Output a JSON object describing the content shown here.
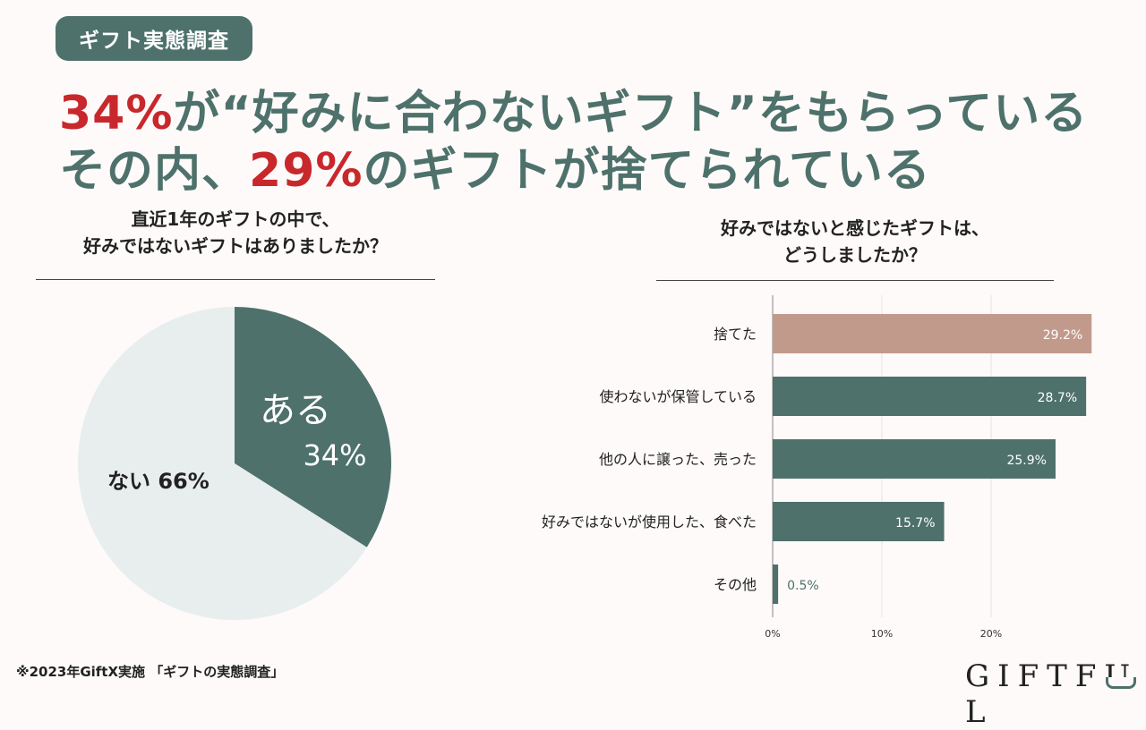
{
  "badge": "ギフト実態調査",
  "headline": {
    "line1": [
      {
        "text": "34%",
        "color": "red"
      },
      {
        "text": "が“好みに合わないギフト”をもらっている",
        "color": "green"
      }
    ],
    "line2": [
      {
        "text": "その内、",
        "color": "green"
      },
      {
        "text": "29%",
        "color": "red"
      },
      {
        "text": "のギフトが捨てられている",
        "color": "green"
      }
    ]
  },
  "colors": {
    "red": "#c8282c",
    "green": "#4e716b",
    "pie_light": "#e8eeee",
    "bar_highlight": "#c29a8c",
    "background": "#fdfaf9"
  },
  "chart_data": [
    {
      "type": "pie",
      "title_lines": [
        "直近1年のギフトの中で、",
        "好みではないギフトはありましたか？"
      ],
      "slices": [
        {
          "label": "ある",
          "value": 34,
          "value_label": "34%",
          "color": "#4e716b"
        },
        {
          "label": "ない",
          "value": 66,
          "value_label": "66%",
          "color": "#e8eeee"
        }
      ]
    },
    {
      "type": "bar",
      "orientation": "horizontal",
      "title_lines": [
        "好みではないと感じたギフトは、",
        "どうしましたか？"
      ],
      "categories": [
        "捨てた",
        "使わないが保管している",
        "他の人に譲った、売った",
        "好みではないが使用した、食べた",
        "その他"
      ],
      "values": [
        29.2,
        28.7,
        25.9,
        15.7,
        0.5
      ],
      "value_labels": [
        "29.2%",
        "28.7%",
        "25.9%",
        "15.7%",
        "0.5%"
      ],
      "bar_colors": [
        "#c29a8c",
        "#4e716b",
        "#4e716b",
        "#4e716b",
        "#4e716b"
      ],
      "xticks": [
        0,
        10,
        20
      ],
      "xtick_labels": [
        "0%",
        "10%",
        "20%"
      ],
      "xlim": [
        0,
        30
      ],
      "grid": true
    }
  ],
  "footnote": "※2023年GiftX実施 「ギフトの実態調査」",
  "logo": "GIFTFUL"
}
